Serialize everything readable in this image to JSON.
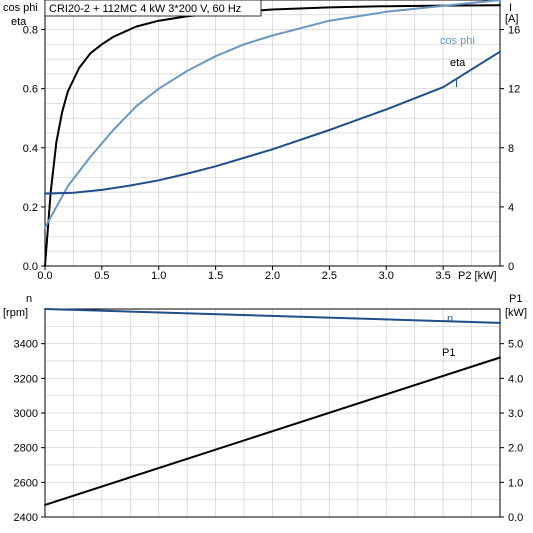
{
  "chart_data": [
    {
      "type": "line",
      "title": "CRI20-2 + 112MC   4 kW   3*200 V, 60 Hz",
      "xlabel": "P2 [kW]",
      "xlim": [
        0,
        4.0
      ],
      "x_ticks": [
        "0.0",
        "0.5",
        "1.0",
        "1.5",
        "2.0",
        "2.5",
        "3.0",
        "3.5"
      ],
      "ylabel_left": [
        "cos phi",
        "eta"
      ],
      "ylim_left": [
        0,
        0.9
      ],
      "y_ticks_left": [
        "0.0",
        "0.2",
        "0.4",
        "0.6",
        "0.8"
      ],
      "ylabel_right": [
        "I",
        "[A]"
      ],
      "ylim_right": [
        0,
        18
      ],
      "y_ticks_right": [
        "0",
        "4",
        "8",
        "12",
        "16"
      ],
      "grid": true,
      "series": [
        {
          "name": "eta",
          "axis": "left",
          "color": "#000000",
          "x": [
            0.0,
            0.05,
            0.1,
            0.15,
            0.2,
            0.3,
            0.4,
            0.5,
            0.6,
            0.8,
            1.0,
            1.25,
            1.5,
            2.0,
            2.5,
            3.0,
            3.5,
            4.0
          ],
          "y": [
            0.0,
            0.25,
            0.42,
            0.52,
            0.59,
            0.67,
            0.72,
            0.75,
            0.775,
            0.81,
            0.83,
            0.845,
            0.855,
            0.868,
            0.875,
            0.879,
            0.881,
            0.882
          ]
        },
        {
          "name": "cos phi",
          "axis": "left",
          "color": "#6b96c2",
          "x": [
            0.0,
            0.2,
            0.4,
            0.6,
            0.8,
            1.0,
            1.25,
            1.5,
            1.75,
            2.0,
            2.5,
            3.0,
            3.5,
            4.0
          ],
          "y": [
            0.13,
            0.27,
            0.37,
            0.46,
            0.54,
            0.6,
            0.66,
            0.71,
            0.75,
            0.78,
            0.83,
            0.86,
            0.88,
            0.9
          ]
        },
        {
          "name": "I",
          "axis": "right",
          "color": "#1f4e8a",
          "x": [
            0.0,
            0.25,
            0.5,
            0.75,
            1.0,
            1.25,
            1.5,
            2.0,
            2.5,
            3.0,
            3.5,
            4.0
          ],
          "y": [
            4.9,
            4.96,
            5.15,
            5.45,
            5.8,
            6.25,
            6.75,
            7.9,
            9.2,
            10.6,
            12.1,
            14.5
          ]
        }
      ],
      "annotations": [
        "cos phi",
        "eta",
        "I"
      ]
    },
    {
      "type": "line",
      "xlim": [
        0,
        4.0
      ],
      "ylabel_left": [
        "n",
        "[rpm]"
      ],
      "ylim_left": [
        2400,
        3600
      ],
      "y_ticks_left": [
        "2400",
        "2600",
        "2800",
        "3000",
        "3200",
        "3400"
      ],
      "ylabel_right": [
        "P1",
        "[kW]"
      ],
      "ylim_right": [
        0,
        6
      ],
      "y_ticks_right": [
        "0.0",
        "1.0",
        "2.0",
        "3.0",
        "4.0",
        "5.0"
      ],
      "grid": true,
      "series": [
        {
          "name": "n",
          "axis": "left",
          "color": "#1f4e8a",
          "x": [
            0.0,
            4.0
          ],
          "y": [
            3600,
            3520
          ]
        },
        {
          "name": "P1",
          "axis": "right",
          "color": "#000000",
          "x": [
            0.0,
            4.0
          ],
          "y": [
            0.35,
            4.6
          ]
        }
      ],
      "annotations": [
        "n",
        "P1"
      ]
    }
  ]
}
